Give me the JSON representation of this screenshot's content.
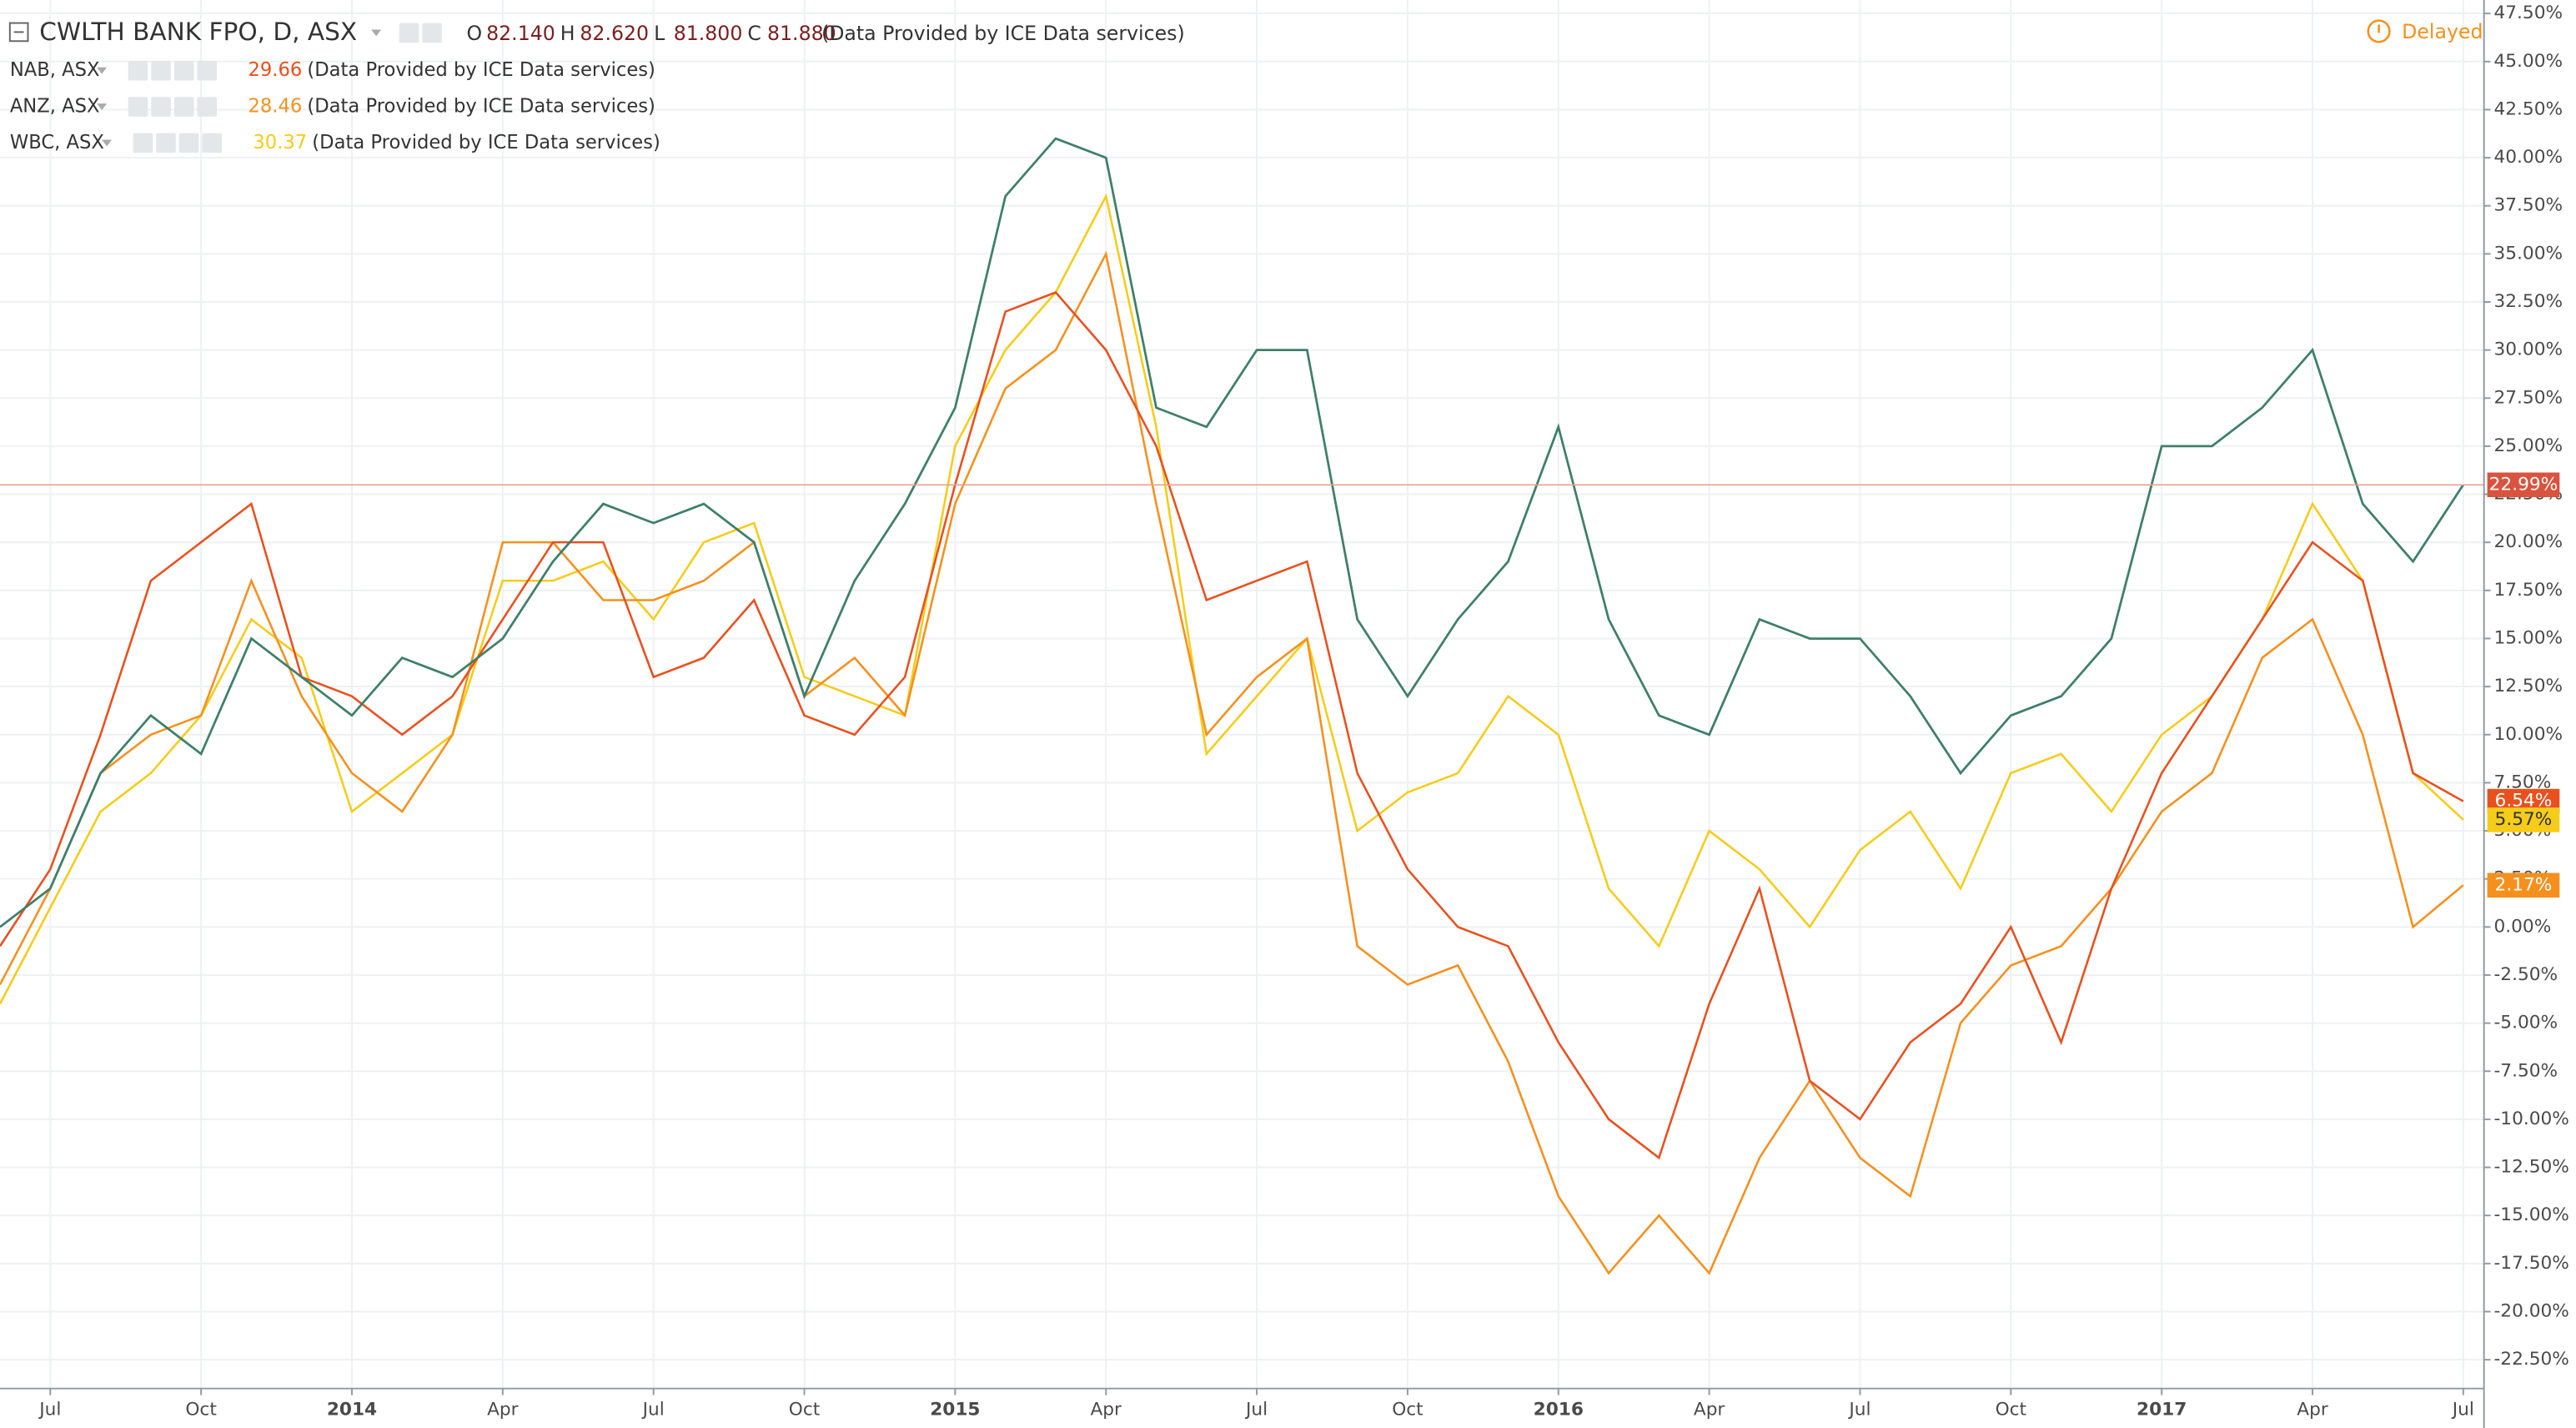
{
  "chart_data": {
    "type": "line",
    "title": "CWLTH BANK FPO, D, ASX",
    "status": "Delayed",
    "ohlc": [
      {
        "label": "O",
        "value": "82.140"
      },
      {
        "label": "H",
        "value": "82.620"
      },
      {
        "label": "L",
        "value": "81.800"
      },
      {
        "label": "C",
        "value": "81.880"
      }
    ],
    "source": "(Data Provided by ICE Data services)",
    "categories": [
      null,
      "Jul",
      null,
      null,
      "Oct",
      null,
      null,
      "2014",
      null,
      null,
      "Apr",
      null,
      null,
      "Jul",
      null,
      null,
      "Oct",
      null,
      null,
      "2015",
      null,
      null,
      "Apr",
      null,
      null,
      "Jul",
      null,
      null,
      "Oct",
      null,
      null,
      "2016",
      null,
      null,
      "Apr",
      null,
      null,
      "Jul",
      null,
      null,
      "Oct",
      null,
      null,
      "2017",
      null,
      null,
      "Apr",
      null,
      null,
      "Jul"
    ],
    "series": [
      {
        "name": "CWLTH BANK FPO, D, ASX",
        "color": "#3f7f6a",
        "values": [
          0,
          2,
          8,
          11,
          9,
          15,
          13,
          11,
          14,
          13,
          15,
          19,
          22,
          21,
          22,
          20,
          12,
          18,
          22,
          27,
          38,
          41,
          40,
          27,
          26,
          30,
          30,
          16,
          12,
          16,
          19,
          26,
          16,
          11,
          10,
          16,
          15,
          15,
          12,
          8,
          11,
          12,
          15,
          25,
          25,
          27,
          30,
          22,
          19,
          22.99
        ],
        "value_labels": [
          null,
          null,
          null,
          null,
          null,
          null,
          null,
          null,
          null,
          null,
          null,
          null,
          null,
          null,
          null,
          null,
          null,
          null,
          null,
          null,
          null,
          null,
          null,
          null,
          null,
          null,
          null,
          null,
          null,
          null,
          null,
          null,
          null,
          null,
          null,
          null,
          null,
          null,
          null,
          null,
          null,
          null,
          null,
          null,
          null,
          null,
          null,
          null,
          null,
          "22.99%"
        ]
      },
      {
        "name": "NAB, ASX",
        "price": 29.66,
        "color": "#e8501e",
        "values": [
          -1,
          3,
          10,
          18,
          20,
          22,
          13,
          12,
          10,
          12,
          16,
          20,
          20,
          13,
          14,
          17,
          11,
          10,
          13,
          23,
          32,
          33,
          30,
          25,
          17,
          18,
          19,
          8,
          3,
          0,
          -1,
          -6,
          -10,
          -12,
          -4,
          2,
          -8,
          -10,
          -6,
          -4,
          0,
          -6,
          2,
          8,
          12,
          16,
          20,
          18,
          8,
          6.54
        ],
        "value_labels": [
          null,
          null,
          null,
          null,
          null,
          null,
          null,
          null,
          null,
          null,
          null,
          null,
          null,
          null,
          null,
          null,
          null,
          null,
          null,
          null,
          null,
          null,
          null,
          null,
          null,
          null,
          null,
          null,
          null,
          null,
          null,
          null,
          null,
          null,
          null,
          null,
          null,
          null,
          null,
          null,
          null,
          null,
          null,
          null,
          null,
          null,
          null,
          null,
          null,
          "6.54%"
        ]
      },
      {
        "name": "ANZ, ASX",
        "price": 28.46,
        "color": "#f5901e",
        "values": [
          -3,
          2,
          8,
          10,
          11,
          18,
          12,
          8,
          6,
          10,
          20,
          20,
          17,
          17,
          18,
          20,
          12,
          14,
          11,
          22,
          28,
          30,
          35,
          22,
          10,
          13,
          15,
          -1,
          -3,
          -2,
          -7,
          -14,
          -18,
          -15,
          -18,
          -12,
          -8,
          -12,
          -14,
          -5,
          -2,
          -1,
          2,
          6,
          8,
          14,
          16,
          10,
          0,
          2.17
        ],
        "value_labels": [
          null,
          null,
          null,
          null,
          null,
          null,
          null,
          null,
          null,
          null,
          null,
          null,
          null,
          null,
          null,
          null,
          null,
          null,
          null,
          null,
          null,
          null,
          null,
          null,
          null,
          null,
          null,
          null,
          null,
          null,
          null,
          null,
          null,
          null,
          null,
          null,
          null,
          null,
          null,
          null,
          null,
          null,
          null,
          null,
          null,
          null,
          null,
          null,
          null,
          "2.17%"
        ]
      },
      {
        "name": "WBC, ASX",
        "price": 30.37,
        "color": "#f5cc1a",
        "values": [
          -4,
          1,
          6,
          8,
          11,
          16,
          14,
          6,
          8,
          10,
          18,
          18,
          19,
          16,
          20,
          21,
          13,
          12,
          11,
          25,
          30,
          33,
          38,
          26,
          9,
          12,
          15,
          5,
          7,
          8,
          12,
          10,
          2,
          -1,
          5,
          3,
          0,
          4,
          6,
          2,
          8,
          9,
          6,
          10,
          12,
          16,
          22,
          18,
          8,
          5.57
        ],
        "value_labels": [
          null,
          null,
          null,
          null,
          null,
          null,
          null,
          null,
          null,
          null,
          null,
          null,
          null,
          null,
          null,
          null,
          null,
          null,
          null,
          null,
          null,
          null,
          null,
          null,
          null,
          null,
          null,
          null,
          null,
          null,
          null,
          null,
          null,
          null,
          null,
          null,
          null,
          null,
          null,
          null,
          null,
          null,
          null,
          null,
          null,
          null,
          null,
          null,
          null,
          "5.57%"
        ]
      }
    ],
    "ylim": [
      -24,
      48.2
    ],
    "yticks": [
      {
        "value": -22.5,
        "label": "-22.50%"
      },
      {
        "value": -20,
        "label": "-20.00%"
      },
      {
        "value": -17.5,
        "label": "-17.50%"
      },
      {
        "value": -15,
        "label": "-15.00%"
      },
      {
        "value": -12.5,
        "label": "-12.50%"
      },
      {
        "value": -10,
        "label": "-10.00%"
      },
      {
        "value": -7.5,
        "label": "-7.50%"
      },
      {
        "value": -5,
        "label": "-5.00%"
      },
      {
        "value": -2.5,
        "label": "-2.50%"
      },
      {
        "value": 0,
        "label": "0.00%"
      },
      {
        "value": 2.5,
        "label": "2.50%"
      },
      {
        "value": 5,
        "label": "5.00%"
      },
      {
        "value": 7.5,
        "label": "7.50%"
      },
      {
        "value": 10,
        "label": "10.00%"
      },
      {
        "value": 12.5,
        "label": "12.50%"
      },
      {
        "value": 15,
        "label": "15.00%"
      },
      {
        "value": 17.5,
        "label": "17.50%"
      },
      {
        "value": 20,
        "label": "20.00%"
      },
      {
        "value": 22.5,
        "label": "22.50%"
      },
      {
        "value": 25,
        "label": "25.00%"
      },
      {
        "value": 27.5,
        "label": "27.50%"
      },
      {
        "value": 30,
        "label": "30.00%"
      },
      {
        "value": 32.5,
        "label": "32.50%"
      },
      {
        "value": 35,
        "label": "35.00%"
      },
      {
        "value": 37.5,
        "label": "37.50%"
      },
      {
        "value": 40,
        "label": "40.00%"
      },
      {
        "value": 42.5,
        "label": "42.50%"
      },
      {
        "value": 45,
        "label": "45.00%"
      },
      {
        "value": 47.5,
        "label": "47.50%"
      }
    ],
    "grid": true
  }
}
